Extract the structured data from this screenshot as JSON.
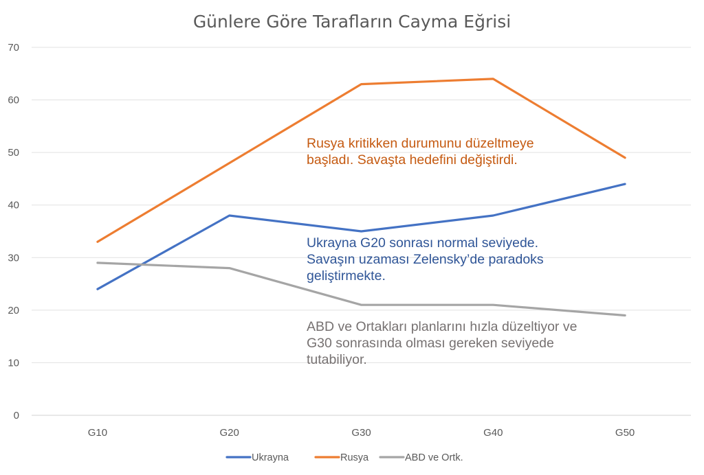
{
  "chart_data": {
    "type": "line",
    "title": "Günlere Göre Tarafların Cayma Eğrisi",
    "xlabel": "",
    "ylabel": "",
    "categories": [
      "G10",
      "G20",
      "G30",
      "G40",
      "G50"
    ],
    "ylim": [
      0,
      70
    ],
    "yticks": [
      "0",
      "10",
      "20",
      "30",
      "40",
      "50",
      "60",
      "70"
    ],
    "grid": true,
    "legend_position": "bottom",
    "series": [
      {
        "name": "Ukrayna",
        "values": [
          24,
          38,
          35,
          38,
          44
        ],
        "color": "#4472c4"
      },
      {
        "name": "Rusya",
        "values": [
          33,
          48,
          63,
          64,
          49
        ],
        "color": "#ed7d31"
      },
      {
        "name": "ABD ve Ortk.",
        "values": [
          29,
          28,
          21,
          21,
          19
        ],
        "color": "#a5a5a5"
      }
    ],
    "annotations": [
      {
        "lines": [
          "Rusya kritikken durumunu düzeltmeye",
          "başladı. Savaşta hedefini değiştirdi."
        ],
        "color": "#c55a11"
      },
      {
        "lines": [
          "Ukrayna G20 sonrası normal seviyede.",
          "Savaşın uzaması Zelensky’de paradoks",
          "geliştirmekte."
        ],
        "color": "#2f5597"
      },
      {
        "lines": [
          "ABD ve Ortakları planlarını hızla düzeltiyor ve",
          "G30 sonrasında olması gereken seviyede",
          "tutabiliyor."
        ],
        "color": "#767171"
      }
    ]
  }
}
